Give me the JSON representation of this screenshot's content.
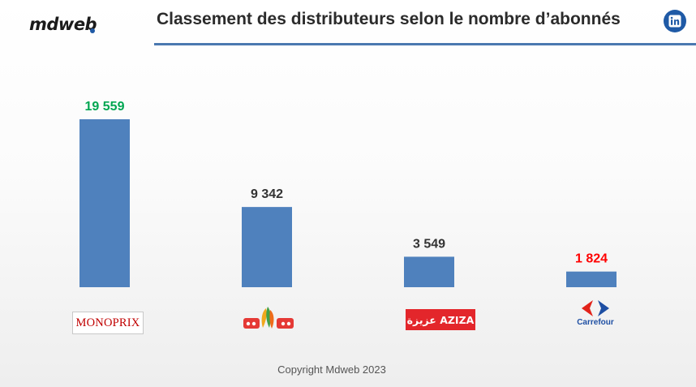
{
  "header": {
    "brand": "mdweb",
    "title": "Classement des distributeurs selon le nombre d’abonnés",
    "linkedin_icon": "linkedin-icon"
  },
  "footer": {
    "copyright": "Copyright Mdweb 2023"
  },
  "colors": {
    "bar": "#4f81bd",
    "highest_label": "#00a651",
    "lowest_label": "#ff0000",
    "default_label": "#333333",
    "rule": "#4a78b0"
  },
  "chart_data": {
    "type": "bar",
    "title": "Classement des distributeurs selon le nombre d’abonnés",
    "categories": [
      "Monoprix",
      "MG",
      "Aziza",
      "Carrefour"
    ],
    "values": [
      19559,
      9342,
      3549,
      1824
    ],
    "value_labels": [
      "19 559",
      "9 342",
      "3 549",
      "1 824"
    ],
    "logos": [
      "MONOPRIX",
      "عزيزة AZIZA",
      "Carrefour"
    ],
    "xlabel": "",
    "ylabel": "",
    "ylim": [
      0,
      19559
    ],
    "grid": false,
    "legend": "none"
  }
}
